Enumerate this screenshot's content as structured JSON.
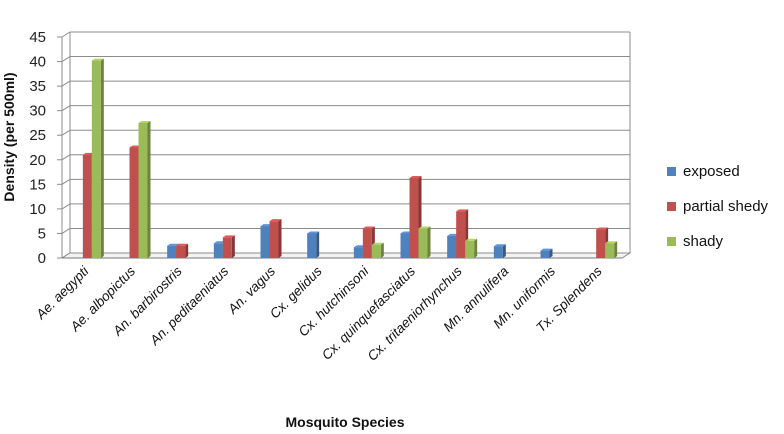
{
  "chart_data": {
    "type": "bar",
    "title": "",
    "xlabel": "Mosquito Species",
    "ylabel": "Density (per 500ml)",
    "ylim": [
      0,
      45
    ],
    "ytick_step": 5,
    "grid": true,
    "legend_position": "right",
    "categories": [
      "Ae. aegypti",
      "Ae. albopictus",
      "An. barbirostris",
      "An. peditaeniatus",
      "An. vagus",
      "Cx. gelidus",
      "Cx. hutchinsoni",
      "Cx. quinquefasciatus",
      "Cx. tritaeniorhynchus",
      "Mn. annulifera",
      "Mn. uniformis",
      "Tx. Splendens"
    ],
    "series": [
      {
        "name": "exposed",
        "color": "#4f81bd",
        "values": [
          0,
          0,
          2.5,
          3,
          6.5,
          5,
          2.2,
          5,
          4.5,
          2.4,
          1.5,
          0
        ]
      },
      {
        "name": "partial shedy",
        "color": "#c0504d",
        "values": [
          21,
          22.5,
          2.5,
          4.2,
          7.5,
          0,
          6,
          16.3,
          9.5,
          0,
          0,
          5.8
        ]
      },
      {
        "name": "shady",
        "color": "#9bbb59",
        "values": [
          40.2,
          27.5,
          0,
          0,
          0,
          0,
          2.7,
          6,
          3.5,
          0,
          0,
          3
        ]
      }
    ]
  }
}
